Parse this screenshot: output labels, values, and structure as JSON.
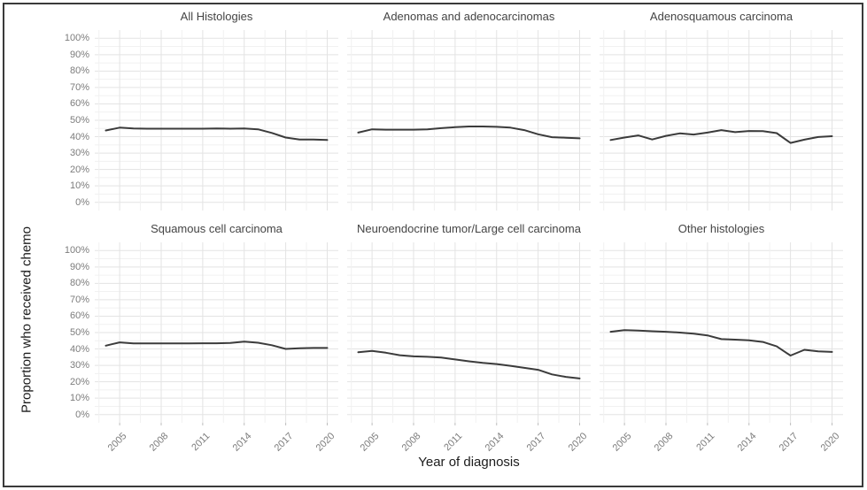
{
  "figure": {
    "border_color": "#3a3a3a",
    "background": "#ffffff"
  },
  "chart_data": {
    "type": "line",
    "title": "",
    "xlabel": "Year of diagnosis",
    "ylabel": "Proportion who received chemo",
    "grid": "major and minor, light gray on white",
    "legend": "none",
    "line_color": "#3b3b3b",
    "major_grid_color": "#e3e3e3",
    "minor_grid_color": "#f1f1f1",
    "tick_label_color": "#7c7c7c",
    "facet_title_color": "#444444",
    "axis_title_color": "#1c1c1c",
    "xlim": [
      2004,
      2020
    ],
    "ylim": [
      0,
      100
    ],
    "x_tick_labels": [
      "2005",
      "2008",
      "2011",
      "2014",
      "2017",
      "2020"
    ],
    "x_tick_years": [
      2005,
      2008,
      2011,
      2014,
      2017,
      2020
    ],
    "y_tick_labels": [
      "0%",
      "10%",
      "20%",
      "30%",
      "40%",
      "50%",
      "60%",
      "70%",
      "80%",
      "90%",
      "100%"
    ],
    "y_tick_values": [
      0,
      10,
      20,
      30,
      40,
      50,
      60,
      70,
      80,
      90,
      100
    ],
    "years": [
      2004,
      2005,
      2006,
      2007,
      2008,
      2009,
      2010,
      2011,
      2012,
      2013,
      2014,
      2015,
      2016,
      2017,
      2018,
      2019,
      2020
    ],
    "panels": [
      {
        "title": "All Histologies",
        "values": [
          43.8,
          45.5,
          45.0,
          44.9,
          44.9,
          44.9,
          44.9,
          44.9,
          45.0,
          44.9,
          45.0,
          44.5,
          42.3,
          39.5,
          38.3,
          38.3,
          38.0
        ]
      },
      {
        "title": "Adenomas and adenocarcinomas",
        "values": [
          42.5,
          44.5,
          44.3,
          44.3,
          44.3,
          44.5,
          45.2,
          45.8,
          46.2,
          46.2,
          46.0,
          45.5,
          44.0,
          41.5,
          39.7,
          39.4,
          39.0
        ]
      },
      {
        "title": "Adenosquamous carcinoma",
        "values": [
          38.0,
          39.5,
          40.8,
          38.3,
          40.5,
          42.0,
          41.3,
          42.5,
          44.0,
          42.8,
          43.5,
          43.4,
          42.2,
          36.2,
          38.2,
          39.8,
          40.3
        ]
      },
      {
        "title": "Squamous cell carcinoma",
        "values": [
          42.0,
          44.0,
          43.4,
          43.4,
          43.4,
          43.4,
          43.4,
          43.5,
          43.5,
          43.7,
          44.5,
          43.8,
          42.3,
          40.0,
          40.4,
          40.6,
          40.6
        ]
      },
      {
        "title": "Neuroendocrine tumor/Large cell carcinoma",
        "values": [
          38.0,
          38.8,
          37.7,
          36.2,
          35.5,
          35.2,
          34.8,
          33.6,
          32.5,
          31.5,
          30.8,
          29.7,
          28.5,
          27.3,
          24.5,
          23.0,
          22.0
        ]
      },
      {
        "title": "Other histologies",
        "values": [
          50.5,
          51.5,
          51.2,
          50.8,
          50.5,
          50.0,
          49.3,
          48.3,
          46.0,
          45.7,
          45.3,
          44.3,
          41.6,
          36.0,
          39.5,
          38.5,
          38.2
        ]
      }
    ]
  }
}
